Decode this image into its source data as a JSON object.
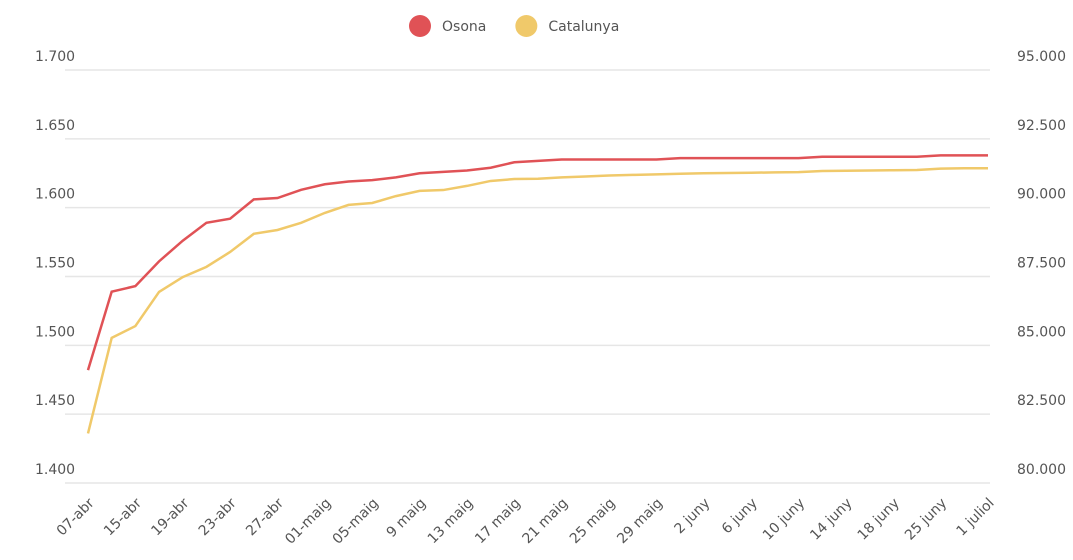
{
  "chart_data": {
    "type": "line",
    "categories": [
      "07-abr",
      null,
      "15-abr",
      null,
      "19-abr",
      null,
      "23-abr",
      null,
      "27-abr",
      null,
      "01-maig",
      null,
      "05-maig",
      null,
      "9 maig",
      null,
      "13 maig",
      null,
      "17 maig",
      null,
      "21 maig",
      null,
      "25 maig",
      null,
      "29 maig",
      null,
      "2 juny",
      null,
      "6 juny",
      null,
      "10 juny",
      null,
      "14 juny",
      null,
      "18 juny",
      null,
      "25 juny",
      null,
      "1 juliol"
    ],
    "series": [
      {
        "name": "Osona",
        "color": "#e05256",
        "axis": "y",
        "values": [
          1482,
          1539,
          1543,
          1561,
          1576,
          1589,
          1592,
          1606,
          1607,
          1613,
          1617,
          1619,
          1620,
          1622,
          1625,
          1626,
          1627,
          1629,
          1633,
          1634,
          1635,
          1635,
          1635,
          1635,
          1635,
          1636,
          1636,
          1636,
          1636,
          1636,
          1636,
          1637,
          1637,
          1637,
          1637,
          1637,
          1638,
          1638,
          1638
        ]
      },
      {
        "name": "Catalunya",
        "color": "#f0c96a",
        "axis": "y2",
        "values": [
          81800,
          85270,
          85700,
          86940,
          87480,
          87850,
          88390,
          89050,
          89190,
          89450,
          89810,
          90100,
          90170,
          90420,
          90610,
          90640,
          90790,
          90970,
          91040,
          91050,
          91100,
          91130,
          91170,
          91190,
          91210,
          91230,
          91250,
          91260,
          91270,
          91280,
          91290,
          91330,
          91340,
          91350,
          91360,
          91370,
          91420,
          91430,
          91430
        ]
      }
    ],
    "ylim": [
      1400,
      1700
    ],
    "yticks": [
      {
        "value": 1400,
        "label": "1.400"
      },
      {
        "value": 1450,
        "label": "1.450"
      },
      {
        "value": 1500,
        "label": "1.500"
      },
      {
        "value": 1550,
        "label": "1.550"
      },
      {
        "value": 1600,
        "label": "1.600"
      },
      {
        "value": 1650,
        "label": "1.650"
      },
      {
        "value": 1700,
        "label": "1.700"
      }
    ],
    "y2lim": [
      80000,
      95000
    ],
    "y2ticks": [
      {
        "value": 80000,
        "label": "80.000"
      },
      {
        "value": 82500,
        "label": "82.500"
      },
      {
        "value": 85000,
        "label": "85.000"
      },
      {
        "value": 87500,
        "label": "87.500"
      },
      {
        "value": 90000,
        "label": "90.000"
      },
      {
        "value": 92500,
        "label": "92.500"
      },
      {
        "value": 95000,
        "label": "95.000"
      }
    ],
    "grid": true,
    "legend": "top"
  }
}
